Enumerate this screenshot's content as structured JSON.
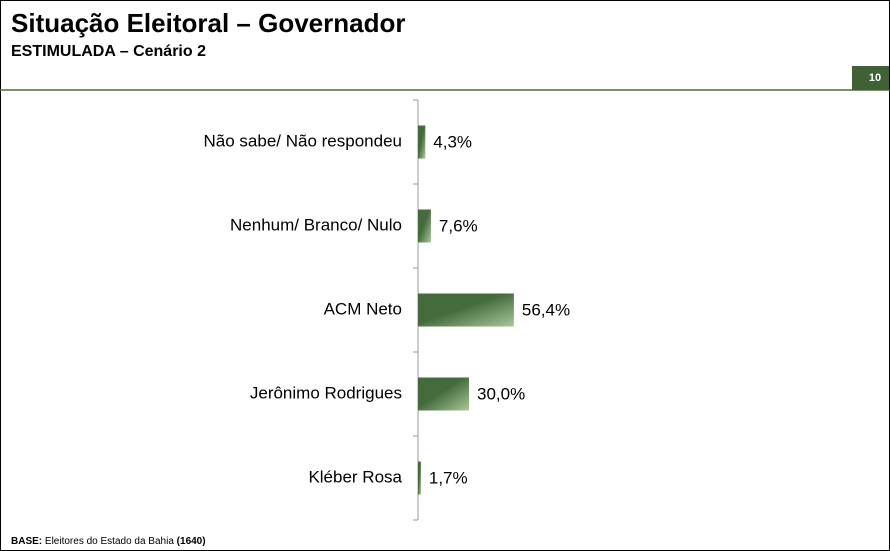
{
  "chart_data": {
    "type": "bar",
    "orientation": "horizontal",
    "title": "Situação Eleitoral – Governador",
    "subtitle": "ESTIMULADA – Cenário 2",
    "page_number": 10,
    "categories": [
      "Não sabe/ Não respondeu",
      "Nenhum/ Branco/ Nulo",
      "ACM Neto",
      "Jerônimo Rodrigues",
      "Kléber Rosa"
    ],
    "values": [
      4.3,
      7.6,
      56.4,
      30.0,
      1.7
    ],
    "value_labels": [
      "4,3%",
      "7,6%",
      "56,4%",
      "30,0%",
      "1,7%"
    ],
    "color": "#456b3c",
    "footnote": {
      "label": "BASE:",
      "text": "Eleitores do Estado da Bahia",
      "sample": "(1640)"
    }
  }
}
